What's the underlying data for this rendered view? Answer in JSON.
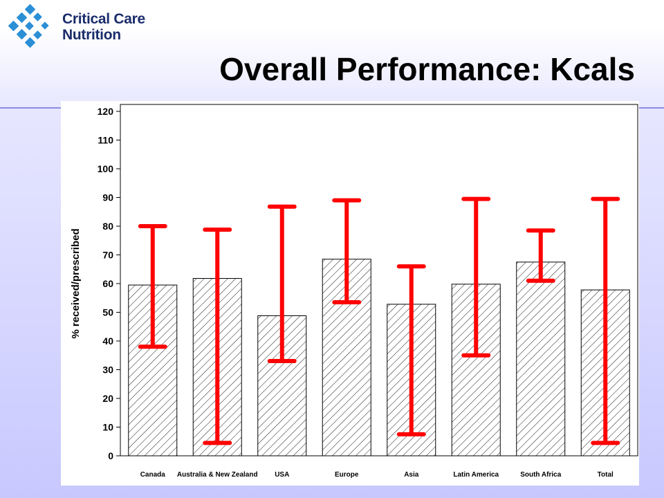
{
  "logo": {
    "line1": "Critical Care",
    "line2": "Nutrition",
    "icon": "ccn-diamond-logo-icon",
    "color": "#1a2c6b"
  },
  "slide": {
    "title": "Overall Performance: Kcals"
  },
  "chart_data": {
    "type": "bar",
    "categories": [
      "Canada",
      "Australia & New Zealand",
      "USA",
      "Europe",
      "Asia",
      "Latin America",
      "South Africa",
      "Total"
    ],
    "values": [
      59.5,
      61.8,
      48.8,
      68.5,
      52.8,
      59.8,
      67.5,
      57.8
    ],
    "error_low": [
      38,
      4.5,
      33,
      53.5,
      7.5,
      35,
      61,
      4.5
    ],
    "error_high": [
      80,
      78.8,
      86.8,
      89,
      66,
      89.5,
      78.5,
      89.5
    ],
    "ylabel": "% received/prescribed",
    "xlabel": "",
    "ylim": [
      0,
      120
    ],
    "yticks": [
      0,
      10,
      20,
      30,
      40,
      50,
      60,
      70,
      80,
      90,
      100,
      110,
      120
    ],
    "bar_fill": "hatched",
    "error_color": "#ff0000",
    "grid": false,
    "legend": "none"
  }
}
